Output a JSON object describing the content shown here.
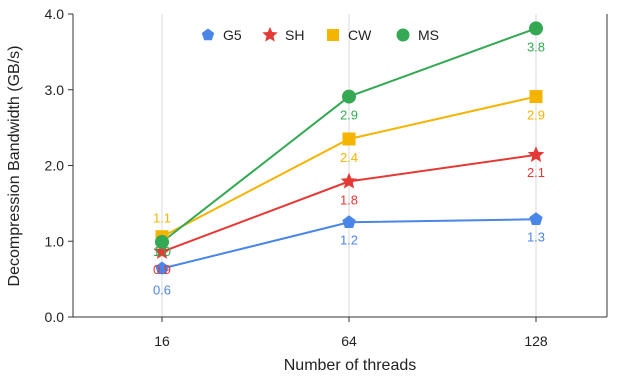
{
  "chart_data": {
    "type": "line",
    "title": "",
    "xlabel": "Number of threads",
    "ylabel": "Decompression Bandwidth (GB/s)",
    "categories": [
      "16",
      "64",
      "128"
    ],
    "ylim": [
      0,
      4
    ],
    "yticks": [
      "0.0",
      "1.0",
      "2.0",
      "3.0",
      "4.0"
    ],
    "grid": "vertical",
    "legend_position": "top-center",
    "series": [
      {
        "name": "G5",
        "color": "#4a86e8",
        "marker": "pentagon",
        "values": [
          0.64,
          1.25,
          1.29
        ],
        "labels": [
          "0.6",
          "1.2",
          "1.3"
        ]
      },
      {
        "name": "SH",
        "color": "#e53935",
        "marker": "star",
        "values": [
          0.86,
          1.79,
          2.14
        ],
        "labels": [
          "0.9",
          "1.8",
          "2.1"
        ]
      },
      {
        "name": "CW",
        "color": "#f4b400",
        "marker": "square",
        "values": [
          1.06,
          2.35,
          2.91
        ],
        "labels": [
          "1.1",
          "2.4",
          "2.9"
        ]
      },
      {
        "name": "MS",
        "color": "#34a853",
        "marker": "circle",
        "values": [
          0.99,
          2.91,
          3.81
        ],
        "labels": [
          "1.0",
          "2.9",
          "3.8"
        ]
      }
    ]
  }
}
